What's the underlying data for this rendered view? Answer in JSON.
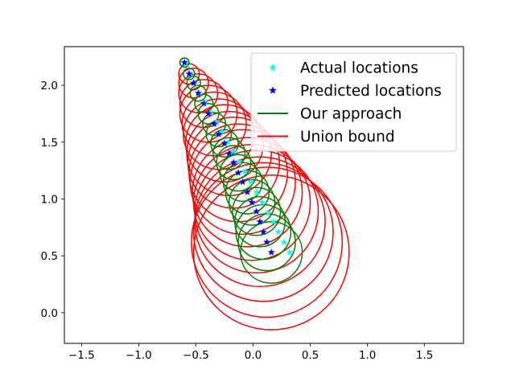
{
  "chart_data": {
    "type": "scatter",
    "title": "",
    "xlabel": "",
    "ylabel": "",
    "xlim": [
      -1.65,
      1.84
    ],
    "ylim": [
      -0.27,
      2.34
    ],
    "xticks": [
      -1.5,
      -1.0,
      -0.5,
      0.0,
      0.5,
      1.0,
      1.5
    ],
    "xtick_labels": [
      "−1.5",
      "−1.0",
      "−0.5",
      "0.0",
      "0.5",
      "1.0",
      "1.5"
    ],
    "yticks": [
      0.0,
      0.5,
      1.0,
      1.5,
      2.0
    ],
    "ytick_labels": [
      "0.0",
      "0.5",
      "1.0",
      "1.5",
      "2.0"
    ],
    "grid": false,
    "legend_position": "top-right",
    "colors": {
      "actual": "#00ffff",
      "predicted": "#0000ff",
      "our_approach": "#008000",
      "union_bound": "#ff0000"
    },
    "series": [
      {
        "name": "Actual locations",
        "marker": "star",
        "color": "#00ffff",
        "points": [
          [
            -0.59,
            2.19
          ],
          [
            -0.55,
            2.1
          ],
          [
            -0.51,
            2.02
          ],
          [
            -0.47,
            1.93
          ],
          [
            -0.42,
            1.85
          ],
          [
            -0.37,
            1.76
          ],
          [
            -0.32,
            1.67
          ],
          [
            -0.27,
            1.59
          ],
          [
            -0.22,
            1.5
          ],
          [
            -0.17,
            1.42
          ],
          [
            -0.12,
            1.33
          ],
          [
            -0.07,
            1.24
          ],
          [
            -0.02,
            1.15
          ],
          [
            0.03,
            1.06
          ],
          [
            0.08,
            0.97
          ],
          [
            0.13,
            0.88
          ],
          [
            0.18,
            0.8
          ],
          [
            0.22,
            0.71
          ],
          [
            0.27,
            0.62
          ],
          [
            0.32,
            0.53
          ]
        ]
      },
      {
        "name": "Predicted locations",
        "marker": "star",
        "color": "#0000ff",
        "points": [
          [
            -0.6,
            2.2
          ],
          [
            -0.56,
            2.1
          ],
          [
            -0.52,
            2.02
          ],
          [
            -0.48,
            1.93
          ],
          [
            -0.43,
            1.84
          ],
          [
            -0.39,
            1.75
          ],
          [
            -0.34,
            1.66
          ],
          [
            -0.3,
            1.57
          ],
          [
            -0.25,
            1.49
          ],
          [
            -0.21,
            1.4
          ],
          [
            -0.17,
            1.32
          ],
          [
            -0.13,
            1.23
          ],
          [
            -0.09,
            1.15
          ],
          [
            -0.05,
            1.06
          ],
          [
            -0.01,
            0.97
          ],
          [
            0.03,
            0.89
          ],
          [
            0.06,
            0.8
          ],
          [
            0.09,
            0.71
          ],
          [
            0.12,
            0.62
          ],
          [
            0.16,
            0.53
          ]
        ]
      },
      {
        "name": "Our approach",
        "shape": "circle",
        "color": "#008000",
        "circles": [
          [
            -0.6,
            2.2,
            0.04
          ],
          [
            -0.56,
            2.1,
            0.05
          ],
          [
            -0.52,
            2.02,
            0.06
          ],
          [
            -0.48,
            1.93,
            0.07
          ],
          [
            -0.43,
            1.84,
            0.08
          ],
          [
            -0.39,
            1.75,
            0.09
          ],
          [
            -0.34,
            1.66,
            0.1
          ],
          [
            -0.3,
            1.57,
            0.11
          ],
          [
            -0.25,
            1.49,
            0.12
          ],
          [
            -0.21,
            1.4,
            0.14
          ],
          [
            -0.17,
            1.32,
            0.15
          ],
          [
            -0.13,
            1.23,
            0.16
          ],
          [
            -0.09,
            1.15,
            0.17
          ],
          [
            -0.05,
            1.06,
            0.19
          ],
          [
            -0.01,
            0.97,
            0.2
          ],
          [
            0.03,
            0.89,
            0.21
          ],
          [
            0.06,
            0.8,
            0.22
          ],
          [
            0.09,
            0.71,
            0.24
          ],
          [
            0.12,
            0.62,
            0.25
          ],
          [
            0.16,
            0.53,
            0.27
          ]
        ]
      },
      {
        "name": "Union bound",
        "shape": "circle",
        "color": "#ff0000",
        "circles": [
          [
            -0.6,
            2.2,
            0.04
          ],
          [
            -0.56,
            2.1,
            0.09
          ],
          [
            -0.52,
            2.02,
            0.13
          ],
          [
            -0.48,
            1.93,
            0.17
          ],
          [
            -0.43,
            1.84,
            0.21
          ],
          [
            -0.39,
            1.75,
            0.25
          ],
          [
            -0.34,
            1.66,
            0.28
          ],
          [
            -0.3,
            1.57,
            0.31
          ],
          [
            -0.25,
            1.49,
            0.34
          ],
          [
            -0.21,
            1.4,
            0.37
          ],
          [
            -0.17,
            1.32,
            0.4
          ],
          [
            -0.13,
            1.23,
            0.43
          ],
          [
            -0.09,
            1.15,
            0.46
          ],
          [
            -0.05,
            1.06,
            0.48
          ],
          [
            -0.01,
            0.97,
            0.51
          ],
          [
            0.03,
            0.89,
            0.54
          ],
          [
            0.06,
            0.8,
            0.57
          ],
          [
            0.09,
            0.71,
            0.61
          ],
          [
            0.12,
            0.62,
            0.66
          ],
          [
            0.16,
            0.53,
            0.68
          ]
        ]
      }
    ]
  }
}
